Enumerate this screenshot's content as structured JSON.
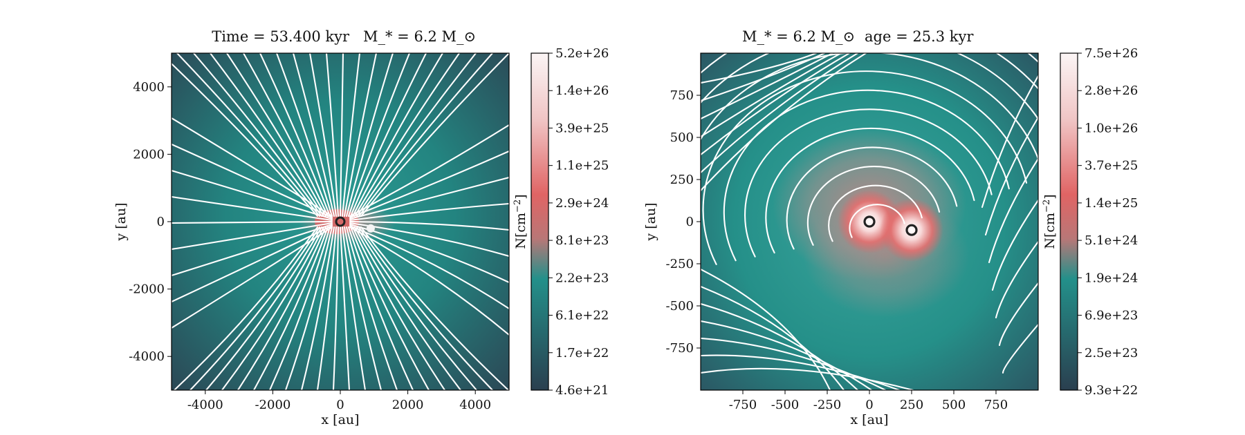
{
  "colors": {
    "dark": "#2a3f4f",
    "teal": "#23908a",
    "red": "#e06464",
    "white": "#fbf5f5",
    "stream": "#ffffff"
  },
  "chart_data": [
    {
      "type": "heatmap",
      "subtype": "column-density map with magnetic streamlines",
      "title_left": "Time = 53.400 kyr",
      "title_right": "M_* = 6.2 M_⊙",
      "xlabel": "x [au]",
      "ylabel": "y [au]",
      "xlim": [
        -5000,
        5000
      ],
      "ylim": [
        -5000,
        5000
      ],
      "xticks": [
        -4000,
        -2000,
        0,
        2000,
        4000
      ],
      "xtick_labels": [
        "-4000",
        "-2000",
        "0",
        "2000",
        "4000"
      ],
      "yticks": [
        4000,
        2000,
        0,
        -2000,
        -4000
      ],
      "ytick_labels": [
        "4000",
        "2000",
        "0",
        "-2000",
        "-4000"
      ],
      "colorbar_label": "N[cm^-2]",
      "colorbar_ticks": [
        "5.2e+26",
        "1.4e+26",
        "3.9e+25",
        "1.1e+25",
        "2.9e+24",
        "8.1e+23",
        "2.2e+23",
        "6.1e+22",
        "1.7e+22",
        "4.6e+21"
      ],
      "colorbar_range": [
        4.6e+21,
        5.2e+26
      ],
      "colorbar_scale": "log",
      "sink_particles": [
        {
          "x": 0,
          "y": 0
        }
      ],
      "secondary_blob": {
        "x": 900,
        "y": -200
      }
    },
    {
      "type": "heatmap",
      "subtype": "column-density map with magnetic streamlines",
      "title_left": "M_* = 6.2 M_⊙",
      "title_right": "age = 25.3 kyr",
      "xlabel": "x [au]",
      "ylabel": "y [au]",
      "xlim": [
        -1000,
        1000
      ],
      "ylim": [
        -1000,
        1000
      ],
      "xticks": [
        -750,
        -500,
        -250,
        0,
        250,
        500,
        750
      ],
      "xtick_labels": [
        "-750",
        "-500",
        "-250",
        "0",
        "250",
        "500",
        "750"
      ],
      "yticks": [
        750,
        500,
        250,
        0,
        -250,
        -500,
        -750
      ],
      "ytick_labels": [
        "750",
        "500",
        "250",
        "0",
        "-250",
        "-500",
        "-750"
      ],
      "colorbar_label": "N[cm^-2]",
      "colorbar_ticks": [
        "7.5e+26",
        "2.8e+26",
        "1.0e+26",
        "3.7e+25",
        "1.4e+25",
        "5.1e+24",
        "1.9e+24",
        "6.9e+23",
        "2.5e+23",
        "9.3e+22"
      ],
      "colorbar_range": [
        9.3e+22,
        7.5e+26
      ],
      "colorbar_scale": "log",
      "sink_particles": [
        {
          "x": 0,
          "y": 0
        },
        {
          "x": 250,
          "y": -50
        }
      ]
    }
  ]
}
